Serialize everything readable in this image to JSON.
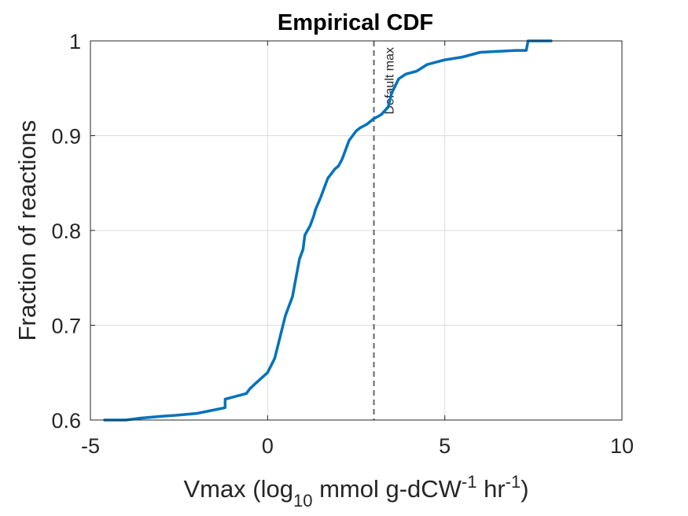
{
  "chart_data": {
    "type": "line",
    "title": "Empirical CDF",
    "xlabel_parts": {
      "prefix": "Vmax (log",
      "sub": "10",
      "mid1": " mmol g-dCW",
      "sup1": "-1",
      "mid2": " hr",
      "sup2": "-1",
      "suffix": ")"
    },
    "ylabel": "Fraction of reactions",
    "xlim": [
      -5,
      10
    ],
    "ylim": [
      0.6,
      1
    ],
    "xticks": [
      -5,
      0,
      5,
      10
    ],
    "xtick_labels": [
      "-5",
      "0",
      "5",
      "10"
    ],
    "yticks": [
      0.6,
      0.7,
      0.8,
      0.9,
      1
    ],
    "ytick_labels": [
      "0.6",
      "0.7",
      "0.8",
      "0.9",
      "1"
    ],
    "grid": true,
    "series": [
      {
        "color": "#0072BD",
        "x": [
          -4.6,
          -4.0,
          -3.6,
          -3.0,
          -2.6,
          -2.0,
          -1.6,
          -1.2,
          -1.2,
          -1.0,
          -0.6,
          -0.5,
          -0.3,
          0.0,
          0.2,
          0.3,
          0.4,
          0.5,
          0.6,
          0.7,
          0.8,
          0.9,
          1.0,
          1.05,
          1.2,
          1.3,
          1.35,
          1.5,
          1.6,
          1.7,
          1.8,
          1.9,
          2.0,
          2.1,
          2.2,
          2.3,
          2.4,
          2.5,
          2.6,
          2.7,
          2.8,
          2.9,
          3.0,
          3.2,
          3.4,
          3.5,
          3.7,
          3.9,
          4.2,
          4.5,
          5.0,
          5.5,
          6.0,
          7.0,
          7.3,
          7.35,
          8.0
        ],
        "y": [
          0.6,
          0.6,
          0.602,
          0.604,
          0.605,
          0.607,
          0.61,
          0.613,
          0.622,
          0.624,
          0.628,
          0.633,
          0.64,
          0.65,
          0.665,
          0.68,
          0.695,
          0.71,
          0.72,
          0.73,
          0.75,
          0.77,
          0.78,
          0.795,
          0.805,
          0.815,
          0.822,
          0.835,
          0.845,
          0.855,
          0.86,
          0.865,
          0.868,
          0.875,
          0.885,
          0.895,
          0.9,
          0.905,
          0.908,
          0.91,
          0.912,
          0.915,
          0.918,
          0.922,
          0.93,
          0.945,
          0.96,
          0.965,
          0.968,
          0.975,
          0.98,
          0.983,
          0.988,
          0.99,
          0.99,
          1.0,
          1.0
        ]
      }
    ],
    "reference_line": {
      "x": 3,
      "label": "Default max",
      "color": "#666666",
      "style": "dashed"
    }
  }
}
